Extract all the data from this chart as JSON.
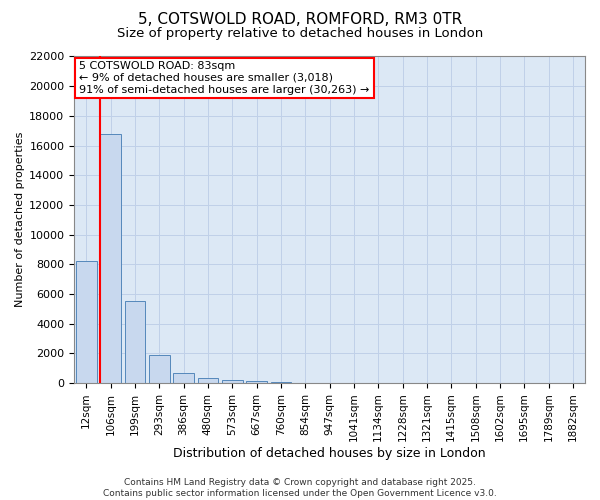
{
  "title": "5, COTSWOLD ROAD, ROMFORD, RM3 0TR",
  "subtitle": "Size of property relative to detached houses in London",
  "xlabel": "Distribution of detached houses by size in London",
  "ylabel": "Number of detached properties",
  "bar_color": "#c8d8ee",
  "bar_edge_color": "#5588bb",
  "categories": [
    "12sqm",
    "106sqm",
    "199sqm",
    "293sqm",
    "386sqm",
    "480sqm",
    "573sqm",
    "667sqm",
    "760sqm",
    "854sqm",
    "947sqm",
    "1041sqm",
    "1134sqm",
    "1228sqm",
    "1321sqm",
    "1415sqm",
    "1508sqm",
    "1602sqm",
    "1695sqm",
    "1789sqm",
    "1882sqm"
  ],
  "values": [
    8200,
    16800,
    5500,
    1900,
    700,
    350,
    180,
    100,
    60,
    0,
    0,
    0,
    0,
    0,
    0,
    0,
    0,
    0,
    0,
    0,
    0
  ],
  "ylim": [
    0,
    22000
  ],
  "yticks": [
    0,
    2000,
    4000,
    6000,
    8000,
    10000,
    12000,
    14000,
    16000,
    18000,
    20000,
    22000
  ],
  "red_line_index": 1,
  "annotation_line1": "5 COTSWOLD ROAD: 83sqm",
  "annotation_line2": "← 9% of detached houses are smaller (3,018)",
  "annotation_line3": "91% of semi-detached houses are larger (30,263) →",
  "footer_text": "Contains HM Land Registry data © Crown copyright and database right 2025.\nContains public sector information licensed under the Open Government Licence v3.0.",
  "grid_color": "#c0d0e8",
  "background_color": "#dce8f5",
  "title_fontsize": 11,
  "subtitle_fontsize": 9.5,
  "ylabel_fontsize": 8,
  "xlabel_fontsize": 9,
  "tick_fontsize": 8,
  "xtick_fontsize": 7.5,
  "annotation_fontsize": 8,
  "footer_fontsize": 6.5
}
